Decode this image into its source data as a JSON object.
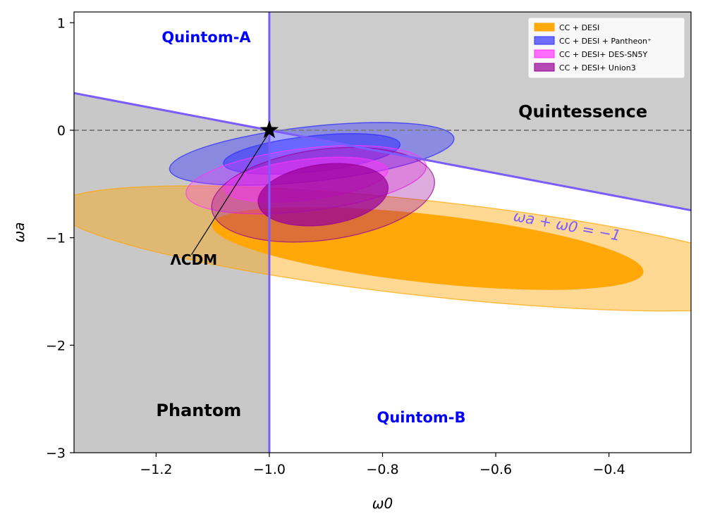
{
  "chart_data": {
    "type": "contour",
    "xlabel": "ω0",
    "ylabel": "ωa",
    "xlim": [
      -1.345,
      -0.255
    ],
    "ylim": [
      -3.0,
      1.1
    ],
    "xticks": [
      -1.2,
      -1.0,
      -0.8,
      -0.6,
      -0.4
    ],
    "xtick_labels": [
      "−1.2",
      "−1.0",
      "−0.8",
      "−0.6",
      "−0.4"
    ],
    "yticks": [
      1,
      0,
      -1,
      -2,
      -3
    ],
    "ytick_labels": [
      "1",
      "0",
      "−1",
      "−2",
      "−3"
    ],
    "grid": false,
    "legend_position": "top-right",
    "shaded_regions": [
      {
        "name": "Quintom-A region",
        "x_range": [
          -1.0,
          -0.255
        ],
        "y_range": [
          0,
          1.1
        ],
        "color": "#cccccc"
      },
      {
        "name": "Quintessence region",
        "condition": "ωa + ω0 > −1, ω0 > −1",
        "color": "#cccccc"
      },
      {
        "name": "Phantom region",
        "condition": "ω0 < −1, ωa + ω0 < −1",
        "color": "#c8c8c8"
      }
    ],
    "lines": [
      {
        "name": "ω0 = −1",
        "x": -1.0,
        "color": "#7b5cff"
      },
      {
        "name": "ωa + ω0 = −1 (line)",
        "x": [
          -1.345,
          -0.255
        ],
        "y": [
          0.345,
          -0.745
        ],
        "color": "#7b5cff"
      },
      {
        "name": "ωa = 0",
        "y": 0.0,
        "style": "dashed",
        "color": "#808080"
      }
    ],
    "series": [
      {
        "name": "CC + DESI",
        "color": "#ffa500",
        "center": [
          -0.72,
          -1.1
        ],
        "contours_1sigma": {
          "a": 0.44,
          "b": 0.115,
          "angle_deg": -30
        },
        "contours_2sigma": {
          "a": 0.76,
          "b": 0.16,
          "angle_deg": -30
        }
      },
      {
        "name": "CC + DESI + Pantheon+",
        "color": "#3333ff",
        "center": [
          -0.925,
          -0.22
        ],
        "contours_1sigma": {
          "a": 0.18,
          "b": 0.06,
          "angle_deg": 30
        },
        "contours_2sigma": {
          "a": 0.29,
          "b": 0.092,
          "angle_deg": 30
        }
      },
      {
        "name": "CC + DESI+ DES-SN5Y",
        "color": "#ff33ff",
        "center": [
          -0.935,
          -0.46
        ],
        "contours_1sigma": {
          "a": 0.17,
          "b": 0.065,
          "angle_deg": 32
        },
        "contours_2sigma": {
          "a": 0.25,
          "b": 0.1,
          "angle_deg": 32
        }
      },
      {
        "name": "CC + DESI+ Union3",
        "color": "#990099",
        "center": [
          -0.905,
          -0.6
        ],
        "contours_1sigma": {
          "a": 0.14,
          "b": 0.09,
          "angle_deg": 35
        },
        "contours_2sigma": {
          "a": 0.24,
          "b": 0.135,
          "angle_deg": 35
        }
      }
    ],
    "point": {
      "name": "ΛCDM",
      "x": -1.0,
      "y": 0.0,
      "marker": "star"
    },
    "annotations": [
      {
        "text": "ΛCDM",
        "x": -1.175,
        "y": -1.25
      },
      {
        "text": "Quintom-A",
        "x": -1.19,
        "y": 0.82
      },
      {
        "text": "Quintessence",
        "x": -0.56,
        "y": 0.12
      },
      {
        "text": "Phantom",
        "x": -1.2,
        "y": -2.66
      },
      {
        "text": "Quintom-B",
        "x": -0.81,
        "y": -2.72
      },
      {
        "text": "ωa + ω0 = −1",
        "x": -0.57,
        "y": -0.84
      }
    ],
    "legend_entries": [
      "CC + DESI",
      "CC + DESI + Pantheon⁺",
      "CC + DESI+ DES-SN5Y",
      "CC + DESI+ Union3"
    ]
  }
}
